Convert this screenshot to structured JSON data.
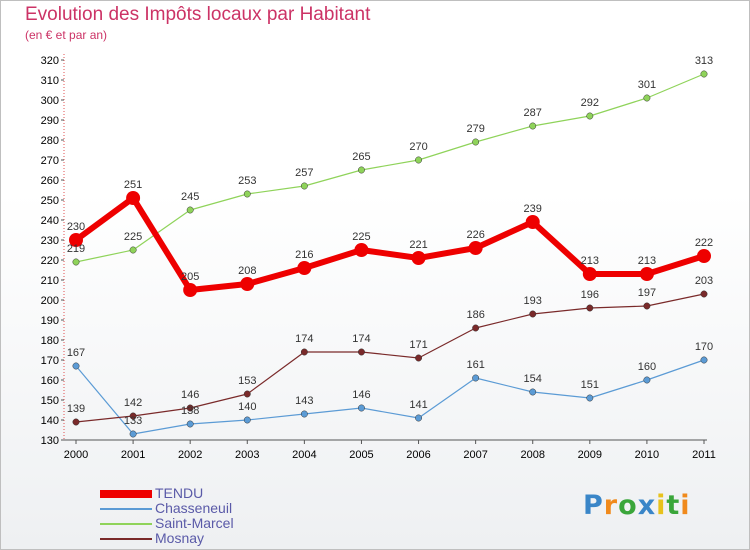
{
  "chart_data": {
    "type": "line",
    "title": "Evolution des Impôts locaux par Habitant",
    "subtitle": "(en € et par an)",
    "xlabel": "",
    "ylabel": "",
    "x": [
      "2000",
      "2001",
      "2002",
      "2003",
      "2004",
      "2005",
      "2006",
      "2007",
      "2008",
      "2009",
      "2010",
      "2011"
    ],
    "ylim": [
      130,
      320
    ],
    "yticks": [
      130,
      140,
      150,
      160,
      170,
      180,
      190,
      200,
      210,
      220,
      230,
      240,
      250,
      260,
      270,
      280,
      290,
      300,
      310,
      320
    ],
    "grid": false,
    "legend_position": "bottom-left",
    "series": [
      {
        "name": "TENDU",
        "color": "#ee0000",
        "values": [
          230,
          251,
          205,
          208,
          216,
          225,
          221,
          226,
          239,
          213,
          213,
          222
        ]
      },
      {
        "name": "Chasseneuil",
        "color": "#5b9bd5",
        "values": [
          167,
          133,
          138,
          140,
          143,
          146,
          141,
          161,
          154,
          151,
          160,
          170
        ]
      },
      {
        "name": "Saint-Marcel",
        "color": "#8fd35a",
        "values": [
          219,
          225,
          245,
          253,
          257,
          265,
          270,
          279,
          287,
          292,
          301,
          313
        ]
      },
      {
        "name": "Mosnay",
        "color": "#7a2a2a",
        "values": [
          139,
          142,
          146,
          153,
          174,
          174,
          171,
          186,
          193,
          196,
          197,
          203
        ]
      }
    ]
  },
  "logo": {
    "letters": [
      "P",
      "r",
      "o",
      "x",
      "i",
      "t",
      "i"
    ],
    "colors": [
      "#3a86c8",
      "#f08a1c",
      "#3aa63a",
      "#3a86c8",
      "#e8c21c",
      "#3aa63a",
      "#f08a1c"
    ]
  }
}
